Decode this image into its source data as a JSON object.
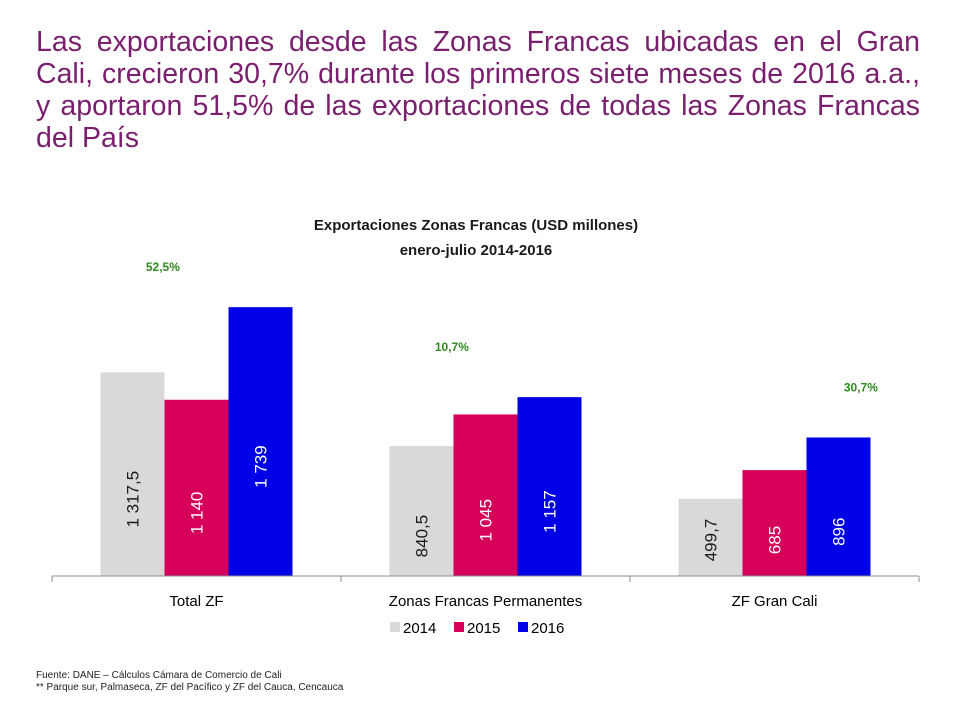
{
  "headline": "Las exportaciones desde las Zonas Francas ubicadas en el Gran Cali, crecieron 30,7% durante los primeros siete meses de 2016 a.a., y aportaron 51,5% de las exportaciones de todas las Zonas Francas del País",
  "footnotes": [
    "Fuente: DANE – Cálculos Cámara de Comercio de Cali",
    "** Parque sur, Palmaseca, ZF del Pacífico y ZF del Cauca, Cencauca"
  ],
  "chart_data": {
    "type": "bar",
    "title": "Exportaciones Zonas Francas (USD millones)",
    "subtitle": "enero-julio 2014-2016",
    "categories": [
      "Total ZF",
      "Zonas Francas Permanentes",
      "ZF Gran Cali"
    ],
    "series": [
      {
        "name": "2014",
        "color": "#d9d9d9",
        "label_color": "#1a1a1a",
        "values": [
          1317.5,
          840.5,
          499.7
        ],
        "labels": [
          "1 317,5",
          "840,5",
          "499,7"
        ]
      },
      {
        "name": "2015",
        "color": "#d6005a",
        "label_color": "#ffffff",
        "values": [
          1140,
          1045,
          685
        ],
        "labels": [
          "1 140",
          "1 045",
          "685"
        ]
      },
      {
        "name": "2016",
        "color": "#0000e6",
        "label_color": "#ffffff",
        "values": [
          1739,
          1157,
          896
        ],
        "labels": [
          "1 739",
          "1 157",
          "896"
        ]
      }
    ],
    "growth_labels": [
      "52,5%",
      "10,7%",
      "30,7%"
    ],
    "ylim": [
      0,
      1850
    ],
    "legend": "bottom",
    "grid": false
  }
}
